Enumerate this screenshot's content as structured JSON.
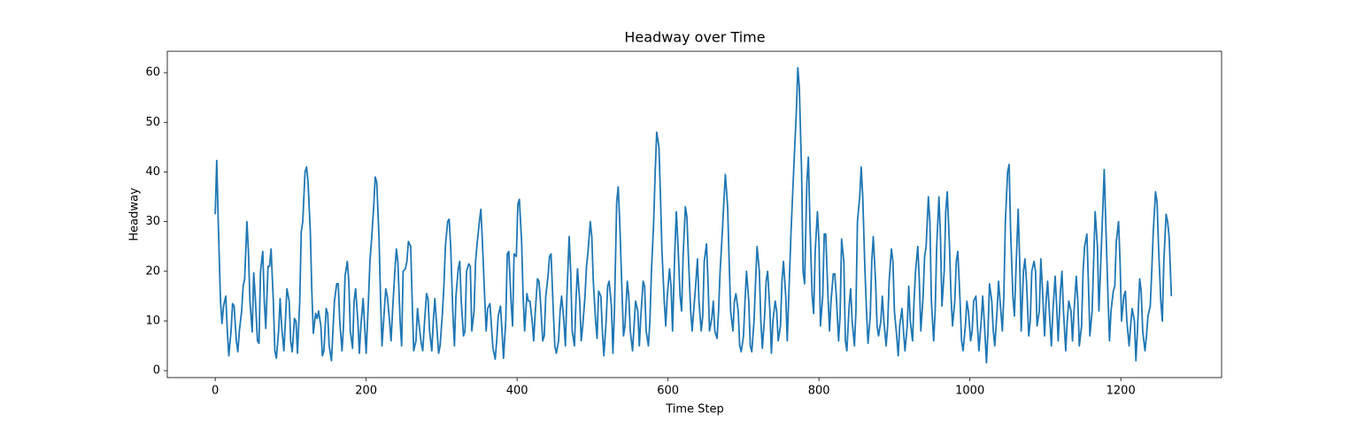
{
  "chart_data": {
    "type": "line",
    "title": "Headway over Time",
    "x_label": "Time Step",
    "y_label": "Headway",
    "color": "#1f77b4",
    "grid": false,
    "xlim": [
      -63.5,
      1333.5
    ],
    "xticks": [
      0,
      200,
      400,
      600,
      800,
      1000,
      1200
    ],
    "ylim": [
      -1.4,
      64.3
    ],
    "yticks": [
      0,
      10,
      20,
      30,
      40,
      50,
      60
    ],
    "x": [
      0,
      2,
      4,
      7,
      9,
      11,
      14,
      16,
      18,
      21,
      23,
      25,
      28,
      30,
      32,
      35,
      37,
      39,
      42,
      44,
      46,
      49,
      51,
      53,
      56,
      58,
      60,
      63,
      65,
      67,
      70,
      72,
      74,
      77,
      79,
      81,
      84,
      86,
      88,
      91,
      93,
      95,
      98,
      100,
      102,
      105,
      107,
      109,
      112,
      114,
      116,
      119,
      121,
      123,
      126,
      128,
      130,
      133,
      135,
      137,
      140,
      142,
      144,
      147,
      149,
      151,
      154,
      156,
      158,
      161,
      163,
      165,
      168,
      170,
      172,
      175,
      177,
      179,
      182,
      184,
      186,
      189,
      191,
      193,
      196,
      198,
      200,
      203,
      205,
      207,
      210,
      212,
      214,
      217,
      219,
      221,
      224,
      226,
      228,
      231,
      233,
      235,
      238,
      240,
      242,
      245,
      247,
      249,
      252,
      254,
      256,
      259,
      261,
      263,
      266,
      268,
      270,
      273,
      275,
      277,
      280,
      282,
      284,
      287,
      289,
      291,
      294,
      296,
      298,
      301,
      303,
      305,
      308,
      310,
      312,
      315,
      317,
      319,
      322,
      324,
      326,
      329,
      331,
      333,
      336,
      338,
      340,
      343,
      345,
      347,
      350,
      352,
      354,
      357,
      359,
      361,
      364,
      366,
      368,
      371,
      373,
      375,
      378,
      380,
      382,
      385,
      387,
      389,
      392,
      394,
      396,
      399,
      401,
      403,
      406,
      408,
      410,
      413,
      415,
      417,
      420,
      422,
      424,
      427,
      429,
      431,
      434,
      436,
      438,
      441,
      443,
      445,
      448,
      450,
      452,
      455,
      457,
      459,
      462,
      464,
      466,
      469,
      471,
      473,
      476,
      478,
      480,
      483,
      485,
      487,
      490,
      492,
      494,
      497,
      499,
      501,
      504,
      506,
      508,
      511,
      513,
      515,
      518,
      520,
      522,
      525,
      527,
      529,
      532,
      534,
      536,
      539,
      541,
      543,
      546,
      548,
      550,
      553,
      555,
      557,
      560,
      562,
      564,
      567,
      569,
      571,
      574,
      576,
      578,
      581,
      583,
      585,
      588,
      590,
      592,
      595,
      597,
      599,
      602,
      604,
      606,
      609,
      611,
      613,
      616,
      618,
      620,
      623,
      625,
      627,
      630,
      632,
      634,
      637,
      639,
      641,
      644,
      646,
      648,
      651,
      653,
      655,
      658,
      660,
      662,
      665,
      667,
      669,
      672,
      674,
      676,
      679,
      681,
      683,
      686,
      688,
      690,
      693,
      695,
      697,
      700,
      702,
      704,
      707,
      709,
      711,
      714,
      716,
      718,
      721,
      723,
      725,
      728,
      730,
      732,
      735,
      737,
      739,
      742,
      744,
      746,
      749,
      751,
      753,
      756,
      758,
      760,
      763,
      765,
      767,
      770,
      772,
      774,
      777,
      779,
      781,
      784,
      786,
      788,
      791,
      793,
      795,
      798,
      800,
      802,
      805,
      807,
      809,
      812,
      814,
      816,
      819,
      821,
      823,
      826,
      828,
      830,
      833,
      835,
      837,
      840,
      842,
      844,
      847,
      849,
      851,
      854,
      856,
      858,
      861,
      863,
      865,
      868,
      870,
      872,
      875,
      877,
      879,
      882,
      884,
      886,
      889,
      891,
      893,
      896,
      898,
      900,
      903,
      905,
      907,
      910,
      912,
      914,
      917,
      919,
      921,
      924,
      926,
      928,
      931,
      933,
      935,
      938,
      940,
      942,
      945,
      947,
      949,
      952,
      954,
      956,
      959,
      961,
      963,
      966,
      968,
      970,
      973,
      975,
      977,
      980,
      982,
      984,
      987,
      989,
      991,
      994,
      996,
      998,
      1001,
      1003,
      1005,
      1008,
      1010,
      1012,
      1015,
      1017,
      1019,
      1022,
      1024,
      1026,
      1029,
      1031,
      1033,
      1036,
      1038,
      1040,
      1043,
      1045,
      1047,
      1050,
      1052,
      1054,
      1057,
      1059,
      1061,
      1064,
      1066,
      1068,
      1071,
      1073,
      1075,
      1078,
      1080,
      1082,
      1085,
      1087,
      1089,
      1092,
      1094,
      1096,
      1099,
      1101,
      1103,
      1106,
      1108,
      1110,
      1113,
      1115,
      1117,
      1120,
      1122,
      1124,
      1127,
      1129,
      1131,
      1134,
      1136,
      1138,
      1141,
      1143,
      1145,
      1148,
      1150,
      1152,
      1155,
      1157,
      1159,
      1162,
      1164,
      1166,
      1169,
      1171,
      1173,
      1176,
      1178,
      1180,
      1183,
      1185,
      1187,
      1190,
      1192,
      1194,
      1197,
      1199,
      1201,
      1204,
      1206,
      1208,
      1211,
      1213,
      1215,
      1218,
      1220,
      1222,
      1225,
      1227,
      1229,
      1232,
      1234,
      1236,
      1239,
      1241,
      1243,
      1246,
      1248,
      1250,
      1253,
      1255,
      1257,
      1260,
      1262,
      1264,
      1267
    ],
    "values": [
      31.5,
      42.3,
      30,
      14,
      9.5,
      13,
      15,
      8,
      3,
      8,
      13.5,
      13,
      6,
      3.8,
      8,
      12,
      17,
      18.5,
      30,
      24,
      14,
      7.8,
      19.7,
      15,
      6,
      5.5,
      20,
      24,
      14,
      8.5,
      21,
      21,
      24.5,
      14,
      4,
      2.5,
      8,
      14.5,
      9,
      4,
      10,
      16.5,
      14,
      6,
      3.8,
      10.5,
      10,
      3.5,
      14,
      28,
      30,
      40,
      41,
      38,
      28,
      16,
      7.5,
      11.5,
      10.5,
      12,
      9,
      3,
      4,
      12.5,
      11.5,
      5,
      2,
      8,
      14,
      17.5,
      17.5,
      10,
      4,
      9,
      19,
      22,
      18,
      8,
      4.5,
      14,
      16.5,
      10,
      3.5,
      9,
      14.5,
      9,
      3.5,
      14,
      22,
      26,
      33,
      39,
      38,
      27,
      15,
      5,
      12,
      16.5,
      15,
      10,
      6,
      12,
      20,
      24.5,
      22,
      10,
      5,
      20,
      20.5,
      22,
      26,
      25,
      14,
      4,
      6,
      12.5,
      9.5,
      5.5,
      4,
      9,
      15.5,
      14.5,
      8,
      4,
      10,
      14.5,
      8,
      3.5,
      5,
      11.5,
      17,
      25,
      30,
      30.5,
      25,
      11,
      5,
      15,
      20.5,
      22,
      14,
      7,
      8,
      20,
      21.5,
      21,
      8,
      12,
      22,
      25.5,
      30,
      32.5,
      26,
      15,
      8,
      12.5,
      13.5,
      9,
      4.5,
      2.3,
      6,
      11,
      13,
      8,
      2.5,
      10,
      23.5,
      24,
      14,
      9,
      23.5,
      23,
      33.5,
      34.5,
      26,
      15,
      8,
      15.5,
      14,
      14,
      10,
      6,
      11.5,
      18.5,
      18,
      14,
      6,
      7,
      15,
      19,
      23,
      23.5,
      12,
      5,
      3.5,
      6,
      12,
      15,
      10,
      5,
      15,
      27,
      20,
      8,
      5,
      14,
      20.5,
      14,
      6,
      9,
      15,
      21,
      24,
      30,
      27,
      18,
      10,
      6.5,
      16,
      15,
      8,
      3,
      10,
      17,
      18,
      13,
      3.5,
      12,
      34,
      37,
      30,
      16,
      7,
      9,
      18,
      15,
      8,
      4,
      9,
      14,
      12,
      5,
      11,
      18,
      17,
      8,
      5,
      10,
      20,
      30,
      40,
      48,
      45,
      35,
      24,
      14,
      9,
      15,
      20.5,
      17,
      8,
      24,
      32,
      26,
      15,
      12,
      23,
      33,
      31,
      23,
      12,
      8,
      12,
      18,
      22.5,
      14,
      8,
      11,
      22,
      25.5,
      18,
      8,
      10.5,
      14,
      8,
      6.5,
      12,
      20,
      28,
      34,
      39.5,
      33,
      22,
      12,
      8,
      14,
      15.5,
      12,
      5,
      3.8,
      7,
      14,
      20,
      14,
      5,
      3.8,
      10,
      18,
      25,
      20,
      10,
      4.5,
      11,
      18,
      20,
      12,
      3.5,
      10,
      14,
      12,
      6,
      9,
      18,
      22,
      15,
      6,
      15,
      28,
      35,
      42,
      52,
      61,
      57,
      40,
      20,
      17.5,
      38,
      43,
      30,
      15,
      11.5,
      24,
      32,
      26,
      9,
      15,
      27.5,
      27.5,
      15,
      8,
      14,
      19.5,
      19.5,
      15,
      6,
      11,
      26.5,
      22,
      6,
      4,
      13,
      16.5,
      10,
      5,
      12,
      30,
      35,
      41,
      35,
      20,
      12,
      5.5,
      11,
      22,
      27,
      18,
      9,
      7,
      10,
      15,
      10,
      5,
      9,
      18,
      24.5,
      22,
      12,
      7,
      3,
      9,
      12.5,
      8,
      4,
      9,
      17,
      10,
      6,
      14,
      20,
      25,
      18,
      8,
      15,
      23,
      25,
      35,
      30,
      14,
      6,
      12,
      25,
      35,
      27,
      13,
      20,
      32,
      36,
      25,
      15,
      9,
      14,
      22,
      24,
      14,
      6,
      4,
      9,
      14,
      12,
      6,
      8,
      14,
      15,
      9,
      4,
      10,
      15,
      10,
      1.6,
      8,
      17.5,
      14,
      8,
      5,
      12,
      18,
      14,
      8,
      15,
      30,
      40,
      41.5,
      28,
      15,
      11,
      20,
      32.5,
      22,
      8,
      20,
      22.5,
      18,
      7,
      10,
      20,
      22,
      20,
      9,
      12,
      22.5,
      17,
      7,
      14,
      18,
      10,
      5,
      12,
      19,
      13,
      6,
      16,
      20,
      12,
      4,
      10,
      14,
      12,
      6,
      12,
      19,
      14,
      5,
      9,
      20,
      25,
      27.5,
      18,
      7,
      12,
      22,
      32,
      25,
      12,
      20,
      32,
      40.5,
      30,
      15,
      6,
      12,
      16,
      17,
      26,
      30,
      22,
      10,
      15,
      16,
      10,
      5,
      9,
      12.5,
      10,
      2,
      8,
      18.5,
      16,
      8,
      4,
      7,
      11,
      13,
      20,
      28,
      36,
      34,
      25,
      14,
      10,
      22,
      31.5,
      30,
      27,
      15
    ]
  }
}
